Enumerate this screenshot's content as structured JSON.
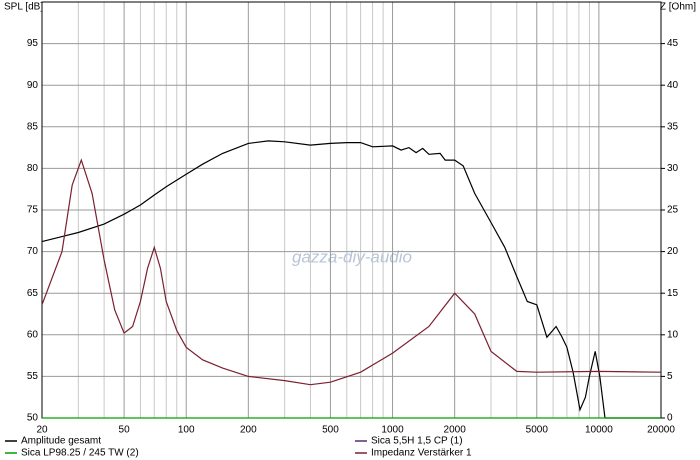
{
  "chart_data": {
    "type": "line",
    "y_label": "SPL [dB]",
    "y2_label": "Z [Ohm]",
    "watermark": "gazza-diy-audio",
    "xlog": true,
    "grid": true,
    "xlim": [
      20,
      20000
    ],
    "xticks": [
      20,
      50,
      100,
      200,
      500,
      1000,
      2000,
      5000,
      10000,
      20000
    ],
    "xminorticks": [
      30,
      40,
      60,
      70,
      80,
      90,
      300,
      400,
      600,
      700,
      800,
      900,
      3000,
      4000,
      6000,
      7000,
      8000,
      9000
    ],
    "ylim": [
      50,
      100
    ],
    "yticks": [
      50,
      55,
      60,
      65,
      70,
      75,
      80,
      85,
      90,
      95
    ],
    "y2lim": [
      0,
      50
    ],
    "y2ticks": [
      0,
      5,
      10,
      15,
      20,
      25,
      30,
      35,
      40,
      45
    ],
    "series": [
      {
        "name": "Amplitude gesamt",
        "color": "#000000",
        "x": [
          20,
          25,
          30,
          40,
          50,
          60,
          70,
          80,
          100,
          120,
          150,
          200,
          250,
          300,
          400,
          500,
          600,
          700,
          800,
          1000,
          1100,
          1200,
          1300,
          1400,
          1500,
          1700,
          1800,
          2000,
          2200,
          2500,
          3000,
          3500,
          4000,
          4500,
          5000,
          5600,
          6200,
          6600,
          7000,
          7500,
          8100,
          8600,
          9000,
          9600,
          10100,
          10700,
          20000
        ],
        "values": [
          71.2,
          71.8,
          72.3,
          73.3,
          74.5,
          75.6,
          76.8,
          77.8,
          79.3,
          80.5,
          81.8,
          83.0,
          83.3,
          83.2,
          82.8,
          83.0,
          83.1,
          83.1,
          82.6,
          82.7,
          82.2,
          82.5,
          81.9,
          82.4,
          81.7,
          81.8,
          81.0,
          81.0,
          80.3,
          77.0,
          73.5,
          70.5,
          67.0,
          64.0,
          63.6,
          59.7,
          61.0,
          59.8,
          58.5,
          55.5,
          51.0,
          52.5,
          55.0,
          58.0,
          55.0,
          50.0,
          50.0
        ]
      },
      {
        "name": "Sica LP98.25 / 245 TW (2)",
        "color": "#00a000",
        "x": [
          20,
          20000
        ],
        "values": [
          50,
          50
        ]
      },
      {
        "name": "Sica 5,5H 1,5 CP (1)",
        "color": "#5a2a6a",
        "x": [
          20,
          20000
        ],
        "values": [
          null,
          null
        ]
      },
      {
        "name": "Impedanz Verstärker 1",
        "color": "#7a2030",
        "axis": "y2",
        "x": [
          20,
          25,
          28,
          31,
          35,
          40,
          45,
          50,
          55,
          60,
          65,
          70,
          75,
          80,
          90,
          100,
          120,
          150,
          200,
          300,
          400,
          500,
          700,
          1000,
          1500,
          2000,
          2500,
          3000,
          4000,
          5000,
          10000,
          20000
        ],
        "values": [
          13.6,
          20,
          28,
          31,
          27,
          19,
          13,
          10.2,
          11,
          14,
          18,
          20.5,
          18,
          14,
          10.5,
          8.5,
          7,
          6,
          5,
          4.5,
          4,
          4.3,
          5.5,
          7.8,
          11,
          15,
          12.5,
          8,
          5.6,
          5.5,
          5.6,
          5.5
        ]
      }
    ]
  }
}
